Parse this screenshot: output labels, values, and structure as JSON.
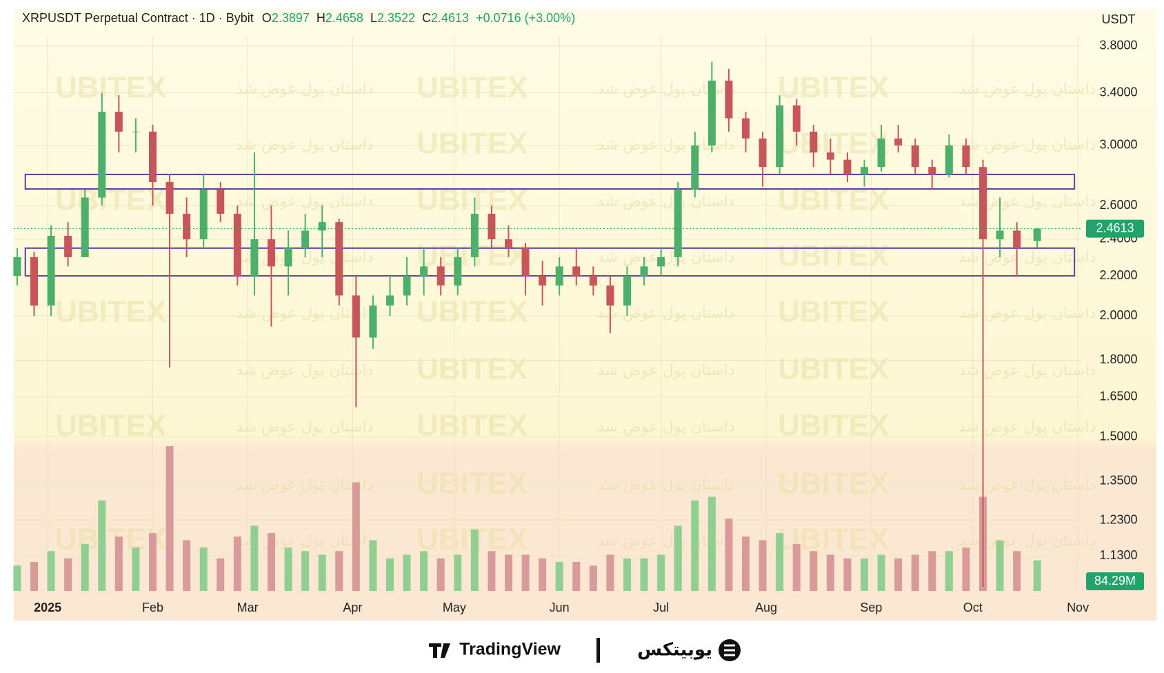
{
  "chart_data": {
    "type": "candlestick",
    "title": "XRPUSDT Perpetual Contract · 1D · Bybit",
    "ohlc_labels": [
      "O",
      "H",
      "L",
      "C"
    ],
    "change_label": "+0.0716 (+3.00%)",
    "y_unit": "USDT",
    "log_scale": true,
    "grid": true,
    "colors": {
      "up": "#4caf6a",
      "down": "#c8555a",
      "up_volume": "#8fcf92",
      "down_volume": "#d99a9a",
      "zone": "#5b3fa8",
      "badge": "#21a36b"
    },
    "xlim": [
      -10,
      305
    ],
    "xticks": [
      {
        "value": 0,
        "label": "2025"
      },
      {
        "value": 31,
        "label": "Feb"
      },
      {
        "value": 59,
        "label": "Mar"
      },
      {
        "value": 90,
        "label": "Apr"
      },
      {
        "value": 120,
        "label": "May"
      },
      {
        "value": 151,
        "label": "Jun"
      },
      {
        "value": 181,
        "label": "Jul"
      },
      {
        "value": 212,
        "label": "Aug"
      },
      {
        "value": 243,
        "label": "Sep"
      },
      {
        "value": 273,
        "label": "Oct"
      },
      {
        "value": 304,
        "label": "Nov"
      }
    ],
    "ylim": [
      1.04,
      4.15
    ],
    "yticks": [
      {
        "value": 3.8,
        "label": "3.8000"
      },
      {
        "value": 3.4,
        "label": "3.4000"
      },
      {
        "value": 3.0,
        "label": "3.0000"
      },
      {
        "value": 2.6,
        "label": "2.6000"
      },
      {
        "value": 2.4,
        "label": "2.4000"
      },
      {
        "value": 2.2,
        "label": "2.2000"
      },
      {
        "value": 2.0,
        "label": "2.0000"
      },
      {
        "value": 1.8,
        "label": "1.8000"
      },
      {
        "value": 1.65,
        "label": "1.6500"
      },
      {
        "value": 1.5,
        "label": "1.5000"
      },
      {
        "value": 1.35,
        "label": "1.3500"
      },
      {
        "value": 1.23,
        "label": "1.2300"
      },
      {
        "value": 1.13,
        "label": "1.1300"
      }
    ],
    "x": [
      -9,
      -4,
      1,
      6,
      11,
      16,
      21,
      26,
      31,
      36,
      41,
      46,
      51,
      56,
      61,
      66,
      71,
      76,
      81,
      86,
      91,
      96,
      101,
      106,
      111,
      116,
      121,
      126,
      131,
      136,
      141,
      146,
      151,
      156,
      161,
      166,
      171,
      176,
      181,
      186,
      191,
      196,
      201,
      206,
      211,
      216,
      221,
      226,
      231,
      236,
      241,
      246,
      251,
      256,
      261,
      266,
      271,
      276,
      281,
      286,
      292
    ],
    "open": [
      2.2,
      2.3,
      2.05,
      2.42,
      2.3,
      2.65,
      3.25,
      3.1,
      3.1,
      2.75,
      2.55,
      2.4,
      2.7,
      2.55,
      2.2,
      2.4,
      2.25,
      2.35,
      2.45,
      2.5,
      2.1,
      1.9,
      2.05,
      2.1,
      2.2,
      2.25,
      2.15,
      2.3,
      2.55,
      2.4,
      2.35,
      2.2,
      2.15,
      2.25,
      2.2,
      2.15,
      2.05,
      2.2,
      2.25,
      2.3,
      2.7,
      3.0,
      3.5,
      3.2,
      3.05,
      2.85,
      3.3,
      3.1,
      2.95,
      2.9,
      2.8,
      2.85,
      3.05,
      3.0,
      2.85,
      2.8,
      3.0,
      2.85,
      2.4,
      2.45,
      2.3897
    ],
    "high": [
      2.35,
      2.33,
      2.48,
      2.5,
      2.7,
      3.4,
      3.38,
      3.2,
      3.15,
      2.8,
      2.65,
      2.8,
      2.75,
      2.6,
      2.95,
      2.6,
      2.45,
      2.55,
      2.6,
      2.52,
      2.2,
      2.1,
      2.2,
      2.3,
      2.35,
      2.3,
      2.35,
      2.65,
      2.6,
      2.48,
      2.38,
      2.28,
      2.3,
      2.35,
      2.25,
      2.2,
      2.25,
      2.3,
      2.35,
      2.75,
      3.1,
      3.66,
      3.6,
      3.25,
      3.1,
      3.38,
      3.35,
      3.15,
      3.05,
      2.95,
      2.9,
      3.15,
      3.15,
      3.05,
      2.9,
      3.08,
      3.05,
      2.9,
      2.65,
      2.5,
      2.4658
    ],
    "low": [
      2.15,
      2.0,
      2.0,
      2.25,
      2.3,
      2.6,
      2.95,
      2.95,
      2.6,
      1.77,
      2.3,
      2.35,
      2.5,
      2.15,
      2.1,
      1.95,
      2.1,
      2.3,
      2.3,
      2.05,
      1.61,
      1.85,
      2.0,
      2.05,
      2.1,
      2.1,
      2.1,
      2.25,
      2.35,
      2.3,
      2.1,
      2.05,
      2.1,
      2.15,
      2.1,
      1.92,
      2.0,
      2.15,
      2.2,
      2.25,
      2.65,
      2.95,
      3.1,
      2.95,
      2.72,
      2.8,
      3.0,
      2.85,
      2.8,
      2.75,
      2.72,
      2.82,
      2.95,
      2.8,
      2.7,
      2.78,
      2.8,
      1.05,
      2.3,
      2.2,
      2.3522
    ],
    "close": [
      2.3,
      2.05,
      2.42,
      2.3,
      2.65,
      3.25,
      3.1,
      3.1,
      2.75,
      2.55,
      2.4,
      2.7,
      2.55,
      2.2,
      2.4,
      2.25,
      2.35,
      2.45,
      2.5,
      2.1,
      1.9,
      2.05,
      2.1,
      2.2,
      2.25,
      2.15,
      2.3,
      2.55,
      2.4,
      2.35,
      2.2,
      2.15,
      2.25,
      2.2,
      2.15,
      2.05,
      2.2,
      2.25,
      2.3,
      2.7,
      3.0,
      3.5,
      3.2,
      3.05,
      2.85,
      3.3,
      3.1,
      2.95,
      2.9,
      2.8,
      2.85,
      3.05,
      3.0,
      2.85,
      2.8,
      3.0,
      2.85,
      2.4,
      2.45,
      2.35,
      2.4613
    ],
    "volume": [
      70,
      80,
      110,
      90,
      130,
      250,
      150,
      120,
      160,
      400,
      140,
      120,
      90,
      150,
      180,
      160,
      120,
      110,
      100,
      110,
      300,
      140,
      90,
      100,
      110,
      90,
      100,
      170,
      110,
      100,
      100,
      90,
      80,
      80,
      70,
      100,
      90,
      90,
      100,
      180,
      250,
      260,
      200,
      150,
      140,
      160,
      130,
      110,
      100,
      90,
      90,
      100,
      90,
      100,
      110,
      110,
      120,
      260,
      140,
      110,
      84.29
    ],
    "volume_label": "84.29M",
    "zones": [
      {
        "low": 2.705,
        "high": 2.8,
        "start": -6.6,
        "end": 303
      },
      {
        "low": 2.2,
        "high": 2.35,
        "start": -6.6,
        "end": 303
      }
    ]
  },
  "watermark": {
    "brand": "UBITEX",
    "slogan": "داستان پول عوض شد"
  },
  "footer": {
    "left": "TradingView",
    "right": "یوبیتکس"
  }
}
